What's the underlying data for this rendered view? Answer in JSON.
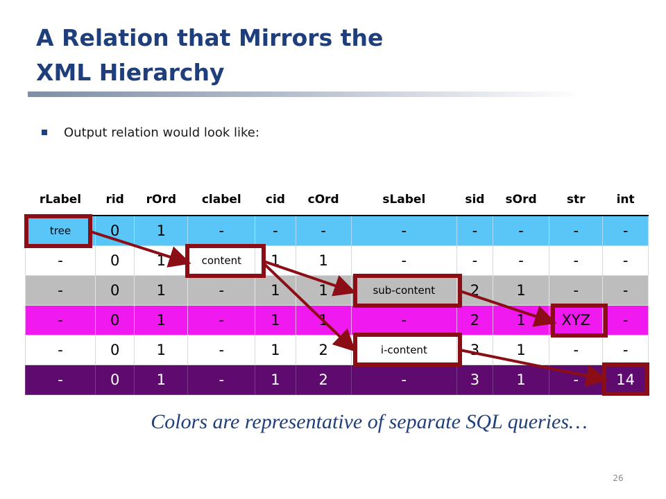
{
  "slide": {
    "title_line1": "A Relation that Mirrors the",
    "title_line2": "XML Hierarchy",
    "bullet": "Output relation would look like:",
    "caption": "Colors are representative of separate SQL queries…",
    "slide_number": "26",
    "colors": {
      "title": "#1f3e7c",
      "row_tree": "#59c6f7",
      "row_content": "#ffffff",
      "row_sub_content": "#bdbdbd",
      "row_xyz": "#f01af0",
      "row_i_content": "#ffffff",
      "row_14": "#5e0a6e",
      "highlight_box": "#8b0d16"
    }
  },
  "table": {
    "headers": [
      "rLabel",
      "rid",
      "rOrd",
      "clabel",
      "cid",
      "cOrd",
      "sLabel",
      "sid",
      "sOrd",
      "str",
      "int"
    ],
    "rows": [
      [
        "tree",
        "0",
        "1",
        "-",
        "-",
        "-",
        "-",
        "-",
        "-",
        "-",
        "-"
      ],
      [
        "-",
        "0",
        "1",
        "content",
        "1",
        "1",
        "-",
        "-",
        "-",
        "-",
        "-"
      ],
      [
        "-",
        "0",
        "1",
        "-",
        "1",
        "1",
        "sub-content",
        "2",
        "1",
        "-",
        "-"
      ],
      [
        "-",
        "0",
        "1",
        "-",
        "1",
        "1",
        "-",
        "2",
        "1",
        "XYZ",
        "-"
      ],
      [
        "-",
        "0",
        "1",
        "-",
        "1",
        "2",
        "i-content",
        "3",
        "1",
        "-",
        "-"
      ],
      [
        "-",
        "0",
        "1",
        "-",
        "1",
        "2",
        "-",
        "3",
        "1",
        "-",
        "14"
      ]
    ]
  }
}
